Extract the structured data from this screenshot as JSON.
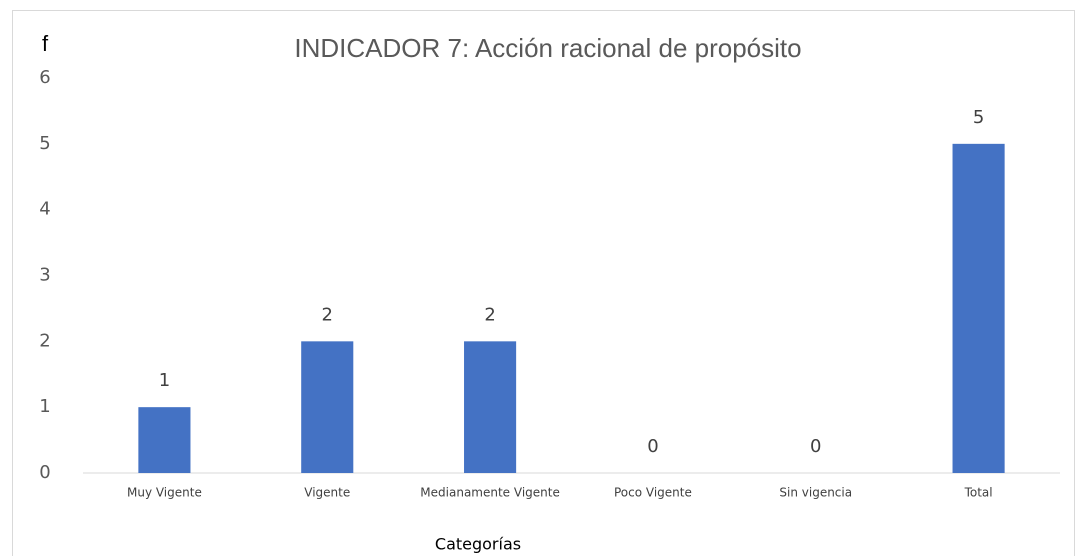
{
  "chart_data": {
    "type": "bar",
    "title": "INDICADOR 7: Acción racional de propósito",
    "y_label": "f",
    "x_label": "Categorías",
    "categories": [
      "Muy Vigente",
      "Vigente",
      "Medianamente Vigente",
      "Poco Vigente",
      "Sin vigencia",
      "Total"
    ],
    "values": [
      1,
      2,
      2,
      0,
      0,
      5
    ],
    "color": "#4472c4",
    "ylim": [
      0,
      6
    ],
    "yticks": [
      0,
      1,
      2,
      3,
      4,
      5,
      6
    ],
    "grid": false,
    "data_labels": true
  }
}
